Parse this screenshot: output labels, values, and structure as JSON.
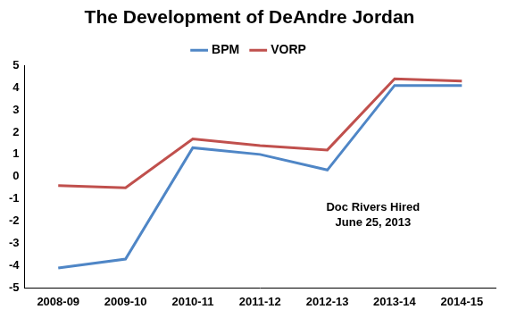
{
  "chart_data": {
    "type": "line",
    "title": "The Development of DeAndre Jordan",
    "categories": [
      "2008-09",
      "2009-10",
      "2010-11",
      "2011-12",
      "2012-13",
      "2013-14",
      "2014-15"
    ],
    "series": [
      {
        "name": "BPM",
        "color": "#4f86c6",
        "values": [
          -4.1,
          -3.7,
          1.3,
          1.0,
          0.3,
          4.1,
          4.1
        ]
      },
      {
        "name": "VORP",
        "color": "#c0504d",
        "values": [
          -0.4,
          -0.5,
          1.7,
          1.4,
          1.2,
          4.4,
          4.3
        ]
      }
    ],
    "ylim": [
      -5,
      5
    ],
    "yticks": [
      -5,
      -4,
      -3,
      -2,
      -1,
      0,
      1,
      2,
      3,
      4,
      5
    ],
    "grid": false,
    "legend": "top",
    "annotations": [
      "Doc Rivers Hired",
      "June 25, 2013"
    ]
  }
}
